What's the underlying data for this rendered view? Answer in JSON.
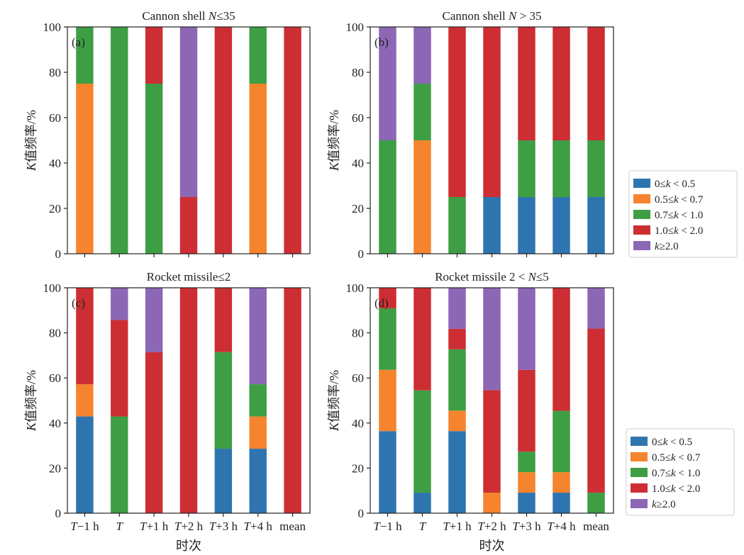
{
  "figure": {
    "xlabel": "时次",
    "legend": [
      {
        "label": "0≤k < 0.5",
        "color": "#2e75b0"
      },
      {
        "label": "0.5≤k < 0.7",
        "color": "#f6832e"
      },
      {
        "label": "0.7≤k < 1.0",
        "color": "#3e9e44"
      },
      {
        "label": "1.0≤k < 2.0",
        "color": "#cd2e33"
      },
      {
        "label": "k≥2.0",
        "color": "#8c67b6"
      }
    ]
  },
  "chart_data": [
    {
      "type": "bar",
      "stacked": true,
      "tag": "(a)",
      "title": "Cannon shell N≤35",
      "ylabel": "K值频率/%",
      "ylim": [
        0,
        100
      ],
      "yticks": [
        0,
        20,
        40,
        60,
        80,
        100
      ],
      "categories": [
        "T−1 h",
        "T",
        "T+1 h",
        "T+2 h",
        "T+3 h",
        "T+4 h",
        "mean"
      ],
      "series": [
        {
          "name": "0≤k < 0.5",
          "values": [
            0,
            0,
            0,
            0,
            0,
            0,
            0
          ]
        },
        {
          "name": "0.5≤k < 0.7",
          "values": [
            75,
            0,
            0,
            0,
            0,
            75,
            0
          ]
        },
        {
          "name": "0.7≤k < 1.0",
          "values": [
            25,
            100,
            75,
            0,
            0,
            25,
            0
          ]
        },
        {
          "name": "1.0≤k < 2.0",
          "values": [
            0,
            0,
            25,
            25,
            100,
            0,
            100
          ]
        },
        {
          "name": "k≥2.0",
          "values": [
            0,
            0,
            0,
            75,
            0,
            0,
            0
          ]
        }
      ]
    },
    {
      "type": "bar",
      "stacked": true,
      "tag": "(b)",
      "title": "Cannon shell N > 35",
      "ylabel": "K值频率/%",
      "ylim": [
        0,
        100
      ],
      "yticks": [
        0,
        20,
        40,
        60,
        80,
        100
      ],
      "categories": [
        "T−1 h",
        "T",
        "T+1 h",
        "T+2 h",
        "T+3 h",
        "T+4 h",
        "mean"
      ],
      "series": [
        {
          "name": "0≤k < 0.5",
          "values": [
            0,
            0,
            0,
            25,
            25,
            25,
            25
          ]
        },
        {
          "name": "0.5≤k < 0.7",
          "values": [
            0,
            50,
            0,
            0,
            0,
            0,
            0
          ]
        },
        {
          "name": "0.7≤k < 1.0",
          "values": [
            50,
            25,
            25,
            0,
            25,
            25,
            25
          ]
        },
        {
          "name": "1.0≤k < 2.0",
          "values": [
            0,
            0,
            75,
            75,
            50,
            50,
            50
          ]
        },
        {
          "name": "k≥2.0",
          "values": [
            50,
            25,
            0,
            0,
            0,
            0,
            0
          ]
        }
      ]
    },
    {
      "type": "bar",
      "stacked": true,
      "tag": "(c)",
      "title": "Rocket missile≤2",
      "ylabel": "K值频率/%",
      "ylim": [
        0,
        100
      ],
      "yticks": [
        0,
        20,
        40,
        60,
        80,
        100
      ],
      "categories": [
        "T−1 h",
        "T",
        "T+1 h",
        "T+2 h",
        "T+3 h",
        "T+4 h",
        "mean"
      ],
      "series": [
        {
          "name": "0≤k < 0.5",
          "values": [
            42.9,
            0,
            0,
            0,
            28.6,
            28.6,
            0
          ]
        },
        {
          "name": "0.5≤k < 0.7",
          "values": [
            14.3,
            0,
            0,
            0,
            0,
            14.3,
            0
          ]
        },
        {
          "name": "0.7≤k < 1.0",
          "values": [
            0,
            42.9,
            0,
            0,
            42.9,
            14.3,
            0
          ]
        },
        {
          "name": "1.0≤k < 2.0",
          "values": [
            42.8,
            42.8,
            71.4,
            100,
            28.5,
            0,
            100
          ]
        },
        {
          "name": "k≥2.0",
          "values": [
            0,
            14.3,
            28.6,
            0,
            0,
            42.8,
            0
          ]
        }
      ]
    },
    {
      "type": "bar",
      "stacked": true,
      "tag": "(d)",
      "title": "Rocket missile 2 < N≤5",
      "ylabel": "K值频率/%",
      "ylim": [
        0,
        100
      ],
      "yticks": [
        0,
        20,
        40,
        60,
        80,
        100
      ],
      "categories": [
        "T−1 h",
        "T",
        "T+1 h",
        "T+2 h",
        "T+3 h",
        "T+4 h",
        "mean"
      ],
      "series": [
        {
          "name": "0≤k < 0.5",
          "values": [
            36.4,
            9.1,
            36.4,
            0,
            9.1,
            9.1,
            0
          ]
        },
        {
          "name": "0.5≤k < 0.7",
          "values": [
            27.2,
            0,
            9.1,
            9.1,
            9.1,
            9.1,
            0
          ]
        },
        {
          "name": "0.7≤k < 1.0",
          "values": [
            27.3,
            45.4,
            27.2,
            0,
            9.1,
            27.2,
            9.1
          ]
        },
        {
          "name": "1.0≤k < 2.0",
          "values": [
            9.1,
            45.5,
            9.1,
            45.5,
            36.3,
            54.6,
            72.8
          ]
        },
        {
          "name": "k≥2.0",
          "values": [
            0,
            0,
            18.2,
            45.4,
            36.4,
            0,
            18.1
          ]
        }
      ]
    }
  ]
}
